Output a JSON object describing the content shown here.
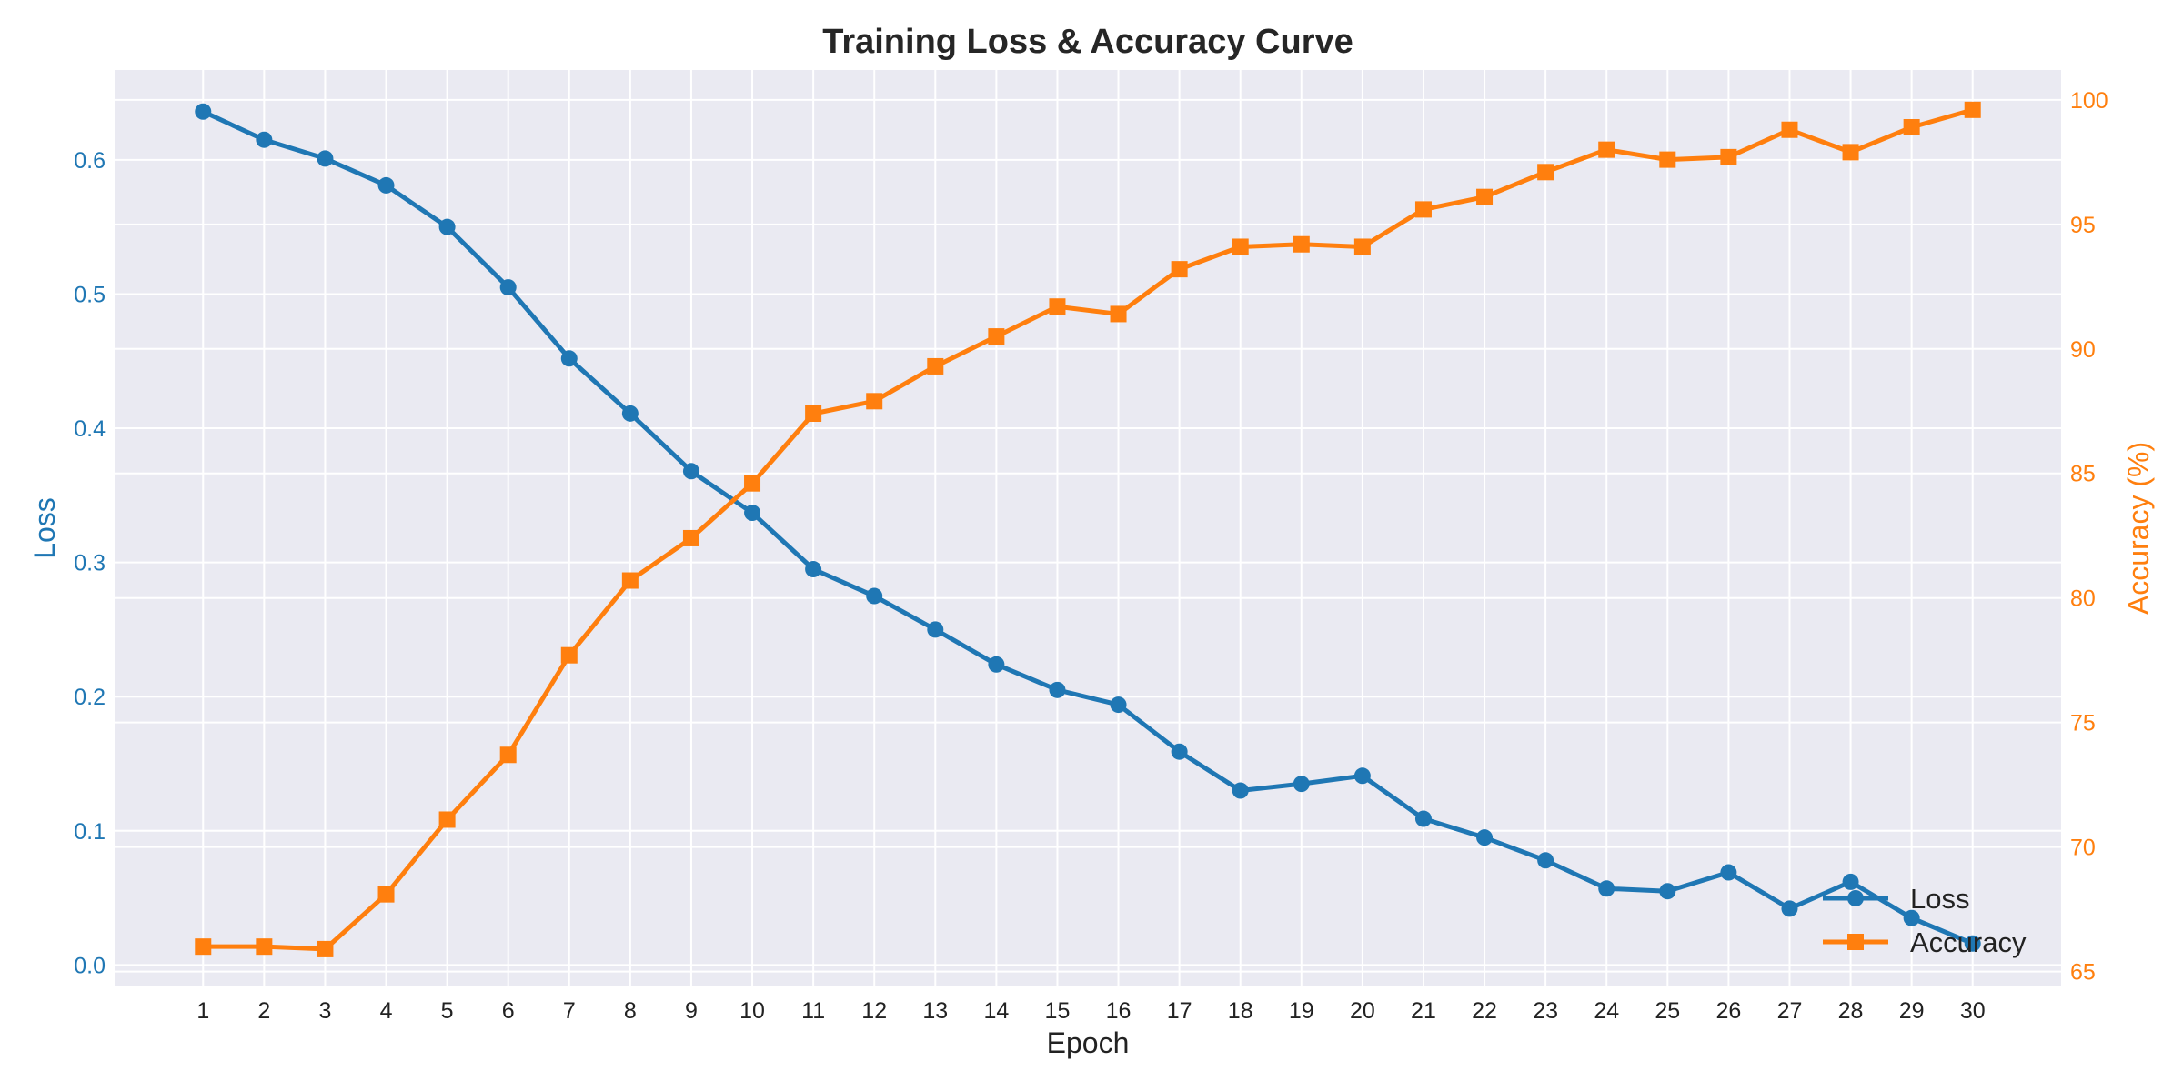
{
  "chart_data": {
    "type": "line",
    "title": "Training Loss & Accuracy Curve",
    "xlabel": "Epoch",
    "ylabel_left": "Loss",
    "ylabel_right": "Accuracy (%)",
    "x": [
      1,
      2,
      3,
      4,
      5,
      6,
      7,
      8,
      9,
      10,
      11,
      12,
      13,
      14,
      15,
      16,
      17,
      18,
      19,
      20,
      21,
      22,
      23,
      24,
      25,
      26,
      27,
      28,
      29,
      30
    ],
    "x_ticks": [
      "1",
      "2",
      "3",
      "4",
      "5",
      "6",
      "7",
      "8",
      "9",
      "10",
      "11",
      "12",
      "13",
      "14",
      "15",
      "16",
      "17",
      "18",
      "19",
      "20",
      "21",
      "22",
      "23",
      "24",
      "25",
      "26",
      "27",
      "28",
      "29",
      "30"
    ],
    "xlim": [
      -0.45,
      31.45
    ],
    "ylim_left": [
      -0.016,
      0.667
    ],
    "ylim_right": [
      64.4,
      101.2
    ],
    "left_ticks": [
      0.0,
      0.1,
      0.2,
      0.3,
      0.4,
      0.5,
      0.6
    ],
    "left_tick_labels": [
      "0.0",
      "0.1",
      "0.2",
      "0.3",
      "0.4",
      "0.5",
      "0.6"
    ],
    "right_ticks": [
      65,
      70,
      75,
      80,
      85,
      90,
      95,
      100
    ],
    "right_tick_labels": [
      "65",
      "70",
      "75",
      "80",
      "85",
      "90",
      "95",
      "100"
    ],
    "grid": true,
    "legend_position": "bottom-right",
    "series": [
      {
        "name": "Loss",
        "axis": "left",
        "color": "#1f77b4",
        "marker": "circle",
        "values": [
          0.636,
          0.615,
          0.601,
          0.581,
          0.55,
          0.505,
          0.452,
          0.411,
          0.368,
          0.337,
          0.295,
          0.275,
          0.25,
          0.224,
          0.205,
          0.194,
          0.159,
          0.13,
          0.135,
          0.141,
          0.109,
          0.095,
          0.078,
          0.057,
          0.055,
          0.069,
          0.042,
          0.062,
          0.035,
          0.016
        ]
      },
      {
        "name": "Accuracy",
        "axis": "right",
        "color": "#ff7f0e",
        "marker": "square",
        "values": [
          66.0,
          66.0,
          65.9,
          68.1,
          71.1,
          73.7,
          77.7,
          80.7,
          82.4,
          84.6,
          87.4,
          87.9,
          89.3,
          90.5,
          91.7,
          91.4,
          93.2,
          94.1,
          94.2,
          94.1,
          95.6,
          96.1,
          97.1,
          98.0,
          97.6,
          97.7,
          98.8,
          97.9,
          98.9,
          99.6
        ]
      }
    ]
  }
}
